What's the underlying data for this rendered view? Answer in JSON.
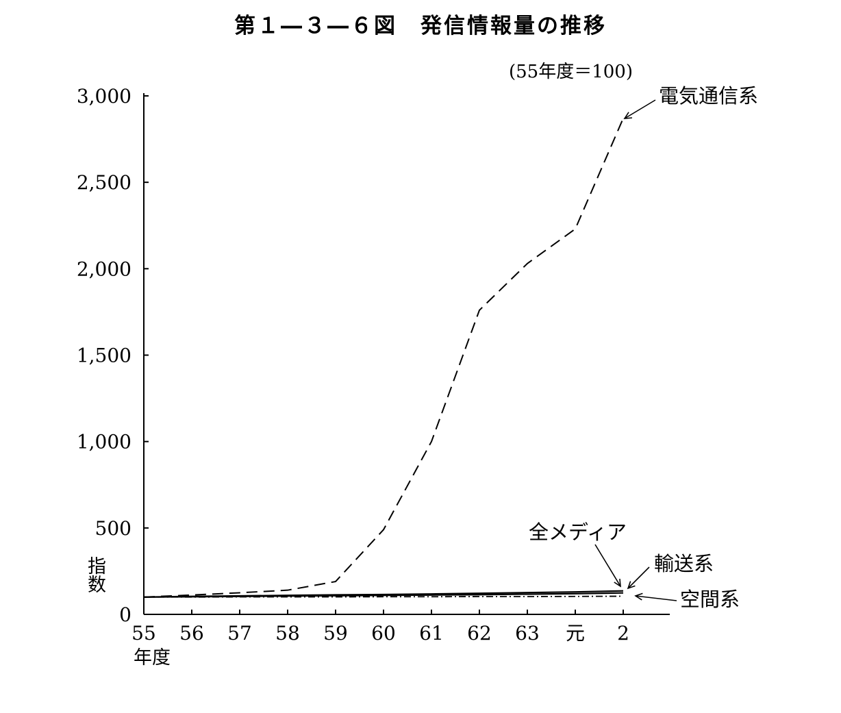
{
  "title": "第１―３―６図　発信情報量の推移",
  "unit_note": "(55年度＝100)",
  "chart_data": {
    "type": "line",
    "ylabel": "指数",
    "xunit": "年度",
    "categories": [
      "55",
      "56",
      "57",
      "58",
      "59",
      "60",
      "61",
      "62",
      "63",
      "元",
      "2"
    ],
    "y_ticks": [
      0,
      500,
      1000,
      1500,
      2000,
      2500,
      3000
    ],
    "y_tick_labels": [
      "0",
      "500",
      "1,000",
      "1,500",
      "2,000",
      "2,500",
      "3,000"
    ],
    "ylim": [
      0,
      3000
    ],
    "grid": false,
    "series": [
      {
        "name": "電気通信系",
        "style": "dashed",
        "values": [
          100,
          112,
          125,
          140,
          190,
          490,
          1000,
          1760,
          2030,
          2230,
          2870
        ]
      },
      {
        "name": "全メディア",
        "style": "solid",
        "values": [
          100,
          104,
          107,
          110,
          113,
          115,
          118,
          122,
          126,
          130,
          136
        ]
      },
      {
        "name": "輸送系",
        "style": "solid",
        "values": [
          100,
          102,
          104,
          106,
          108,
          110,
          112,
          114,
          117,
          120,
          124
        ]
      },
      {
        "name": "空間系",
        "style": "dash-dot",
        "values": [
          100,
          100,
          101,
          101,
          101,
          102,
          102,
          103,
          103,
          104,
          105
        ]
      }
    ]
  }
}
